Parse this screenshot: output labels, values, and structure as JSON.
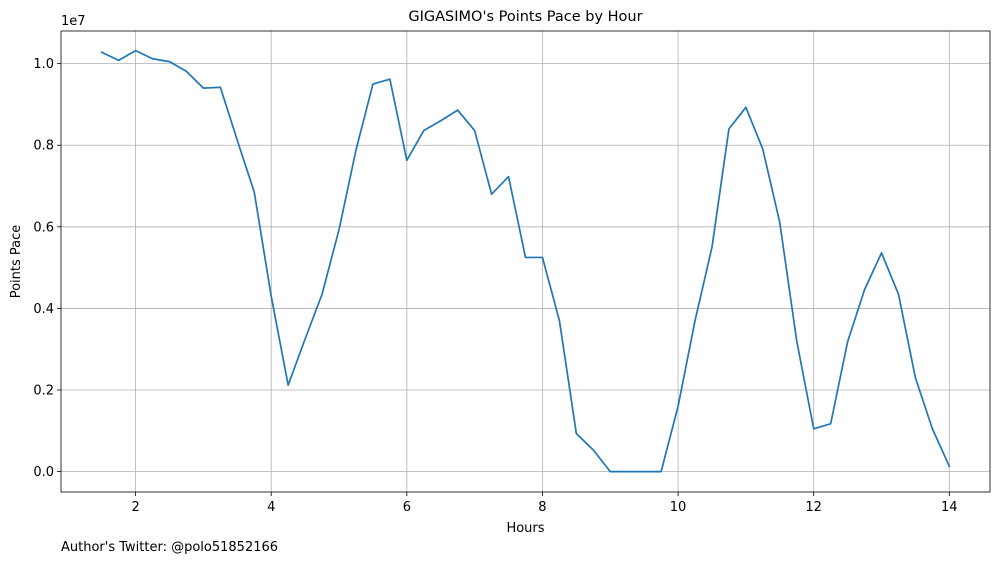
{
  "chart_data": {
    "type": "line",
    "title": "GIGASIMO's Points Pace by Hour",
    "xlabel": "Hours",
    "ylabel": "Points Pace",
    "y_offset_label": "1e7",
    "footnote": "Author's Twitter: @polo51852166",
    "xlim": [
      0.9,
      14.6
    ],
    "ylim": [
      -0.05,
      1.08
    ],
    "x_ticks": [
      2,
      4,
      6,
      8,
      10,
      12,
      14
    ],
    "x_tick_labels": [
      "2",
      "4",
      "6",
      "8",
      "10",
      "12",
      "14"
    ],
    "y_ticks": [
      0.0,
      0.2,
      0.4,
      0.6,
      0.8,
      1.0
    ],
    "y_tick_labels": [
      "0.0",
      "0.2",
      "0.4",
      "0.6",
      "0.8",
      "1.0"
    ],
    "grid": true,
    "series": [
      {
        "color": "#1f77b4",
        "x": [
          1.5,
          1.75,
          2.0,
          2.25,
          2.5,
          2.75,
          3.0,
          3.25,
          3.5,
          3.75,
          4.0,
          4.25,
          4.5,
          4.75,
          5.0,
          5.25,
          5.5,
          5.75,
          6.0,
          6.25,
          6.5,
          6.75,
          7.0,
          7.25,
          7.5,
          7.75,
          8.0,
          8.25,
          8.5,
          8.75,
          9.0,
          9.25,
          9.5,
          9.75,
          10.0,
          10.25,
          10.5,
          10.75,
          11.0,
          11.25,
          11.5,
          11.75,
          12.0,
          12.25,
          12.5,
          12.75,
          13.0,
          13.25,
          13.5,
          13.75,
          14.0
        ],
        "y": [
          1.028,
          1.008,
          1.032,
          1.012,
          1.005,
          0.981,
          0.94,
          0.942,
          0.812,
          0.685,
          0.43,
          0.212,
          0.325,
          0.435,
          0.593,
          0.788,
          0.95,
          0.962,
          0.763,
          0.836,
          0.86,
          0.886,
          0.836,
          0.68,
          0.723,
          0.525,
          0.525,
          0.37,
          0.093,
          0.053,
          0.0,
          0.0,
          0.0,
          0.0,
          0.16,
          0.37,
          0.55,
          0.84,
          0.893,
          0.79,
          0.61,
          0.32,
          0.105,
          0.117,
          0.318,
          0.446,
          0.536,
          0.435,
          0.23,
          0.105,
          0.013
        ]
      }
    ]
  }
}
